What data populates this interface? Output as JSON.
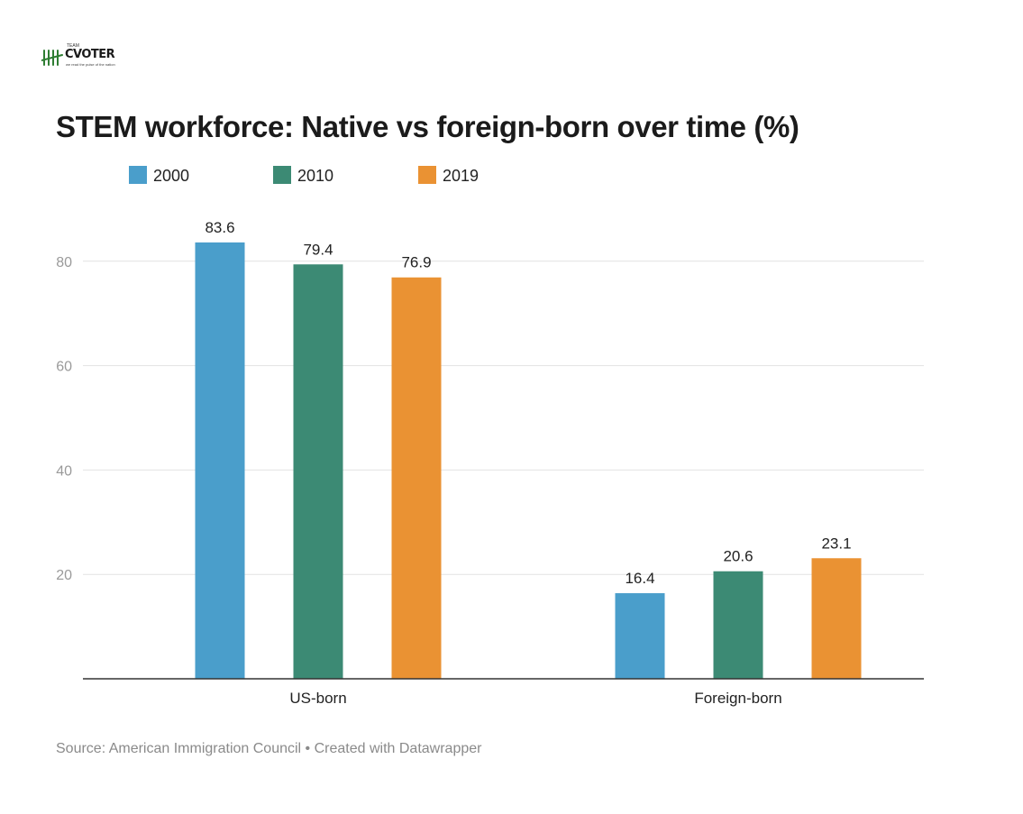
{
  "logo": {
    "wordmark": "CVOTER",
    "tagline_top": "TEAM",
    "tagline_bottom": "we read the pulse of the nation"
  },
  "chart_data": {
    "type": "bar",
    "title": "STEM workforce: Native vs foreign-born over time (%)",
    "categories": [
      "US-born",
      "Foreign-born"
    ],
    "series": [
      {
        "name": "2000",
        "values": [
          83.6,
          16.4
        ],
        "color": "#4a9ecb"
      },
      {
        "name": "2010",
        "values": [
          79.4,
          20.6
        ],
        "color": "#3c8a74"
      },
      {
        "name": "2019",
        "values": [
          76.9,
          23.1
        ],
        "color": "#ea9233"
      }
    ],
    "y_ticks": [
      20,
      40,
      60,
      80
    ],
    "ylim": [
      0,
      90
    ],
    "grid": true,
    "legend_position": "top-left",
    "source": "Source: American Immigration Council • Created with Datawrapper"
  }
}
